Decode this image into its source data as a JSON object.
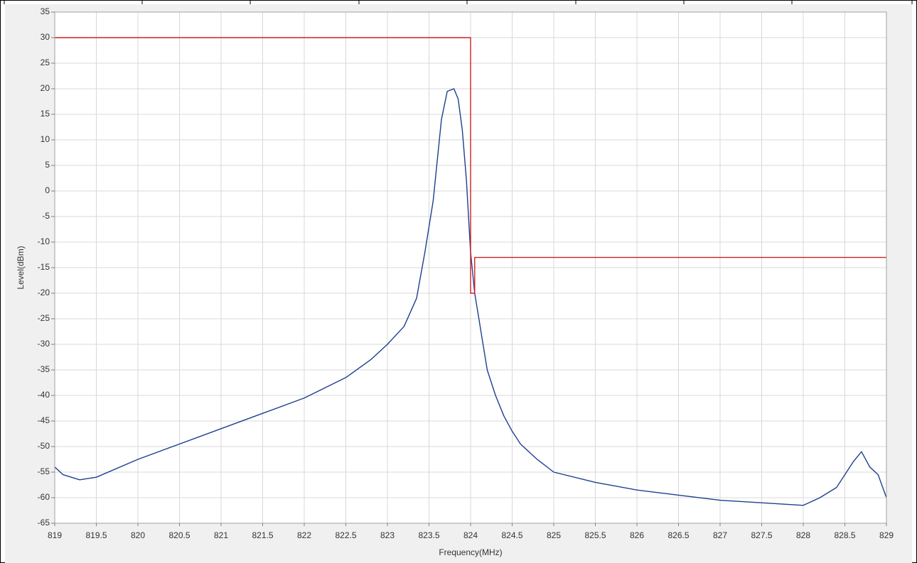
{
  "chart_data": {
    "type": "line",
    "title": "",
    "xlabel": "Frequency(MHz)",
    "ylabel": "Level(dBm)",
    "xlim": [
      819,
      829
    ],
    "ylim": [
      -65,
      35
    ],
    "x_ticks": [
      "819",
      "819.5",
      "820",
      "820.5",
      "821",
      "821.5",
      "822",
      "822.5",
      "823",
      "823.5",
      "824",
      "824.5",
      "825",
      "825.5",
      "826",
      "826.5",
      "827",
      "827.5",
      "828",
      "828.5",
      "829"
    ],
    "y_ticks": [
      "35",
      "30",
      "25",
      "20",
      "15",
      "10",
      "5",
      "0",
      "-5",
      "-10",
      "-15",
      "-20",
      "-25",
      "-30",
      "-35",
      "-40",
      "-45",
      "-50",
      "-55",
      "-60",
      "-65"
    ],
    "grid": true,
    "series": [
      {
        "color": "#1f3f8f",
        "x": [
          819.0,
          819.1,
          819.2,
          819.3,
          819.5,
          820.0,
          820.5,
          821.0,
          821.5,
          822.0,
          822.5,
          822.8,
          823.0,
          823.2,
          823.35,
          823.45,
          823.55,
          823.65,
          823.72,
          823.8,
          823.85,
          823.9,
          823.95,
          824.0,
          824.05,
          824.1,
          824.15,
          824.2,
          824.3,
          824.4,
          824.5,
          824.6,
          824.8,
          825.0,
          825.5,
          826.0,
          826.5,
          827.0,
          827.5,
          828.0,
          828.2,
          828.4,
          828.5,
          828.6,
          828.7,
          828.8,
          828.9,
          829.0
        ],
        "y": [
          -54,
          -55.5,
          -56,
          -56.5,
          -56,
          -52.5,
          -49.5,
          -46.5,
          -43.5,
          -40.5,
          -36.5,
          -33,
          -30,
          -26.5,
          -21,
          -12,
          -2,
          14,
          19.5,
          20,
          18,
          12,
          2,
          -12,
          -20,
          -25,
          -30,
          -35,
          -40,
          -44,
          -47,
          -49.5,
          -52.5,
          -55,
          -57,
          -58.5,
          -59.5,
          -60.5,
          -61,
          -61.5,
          -60,
          -58,
          -55.5,
          -53,
          -51,
          -54,
          -55.5,
          -60
        ]
      },
      {
        "color": "#d02020",
        "x": [
          819,
          824.0,
          824.0,
          824.05,
          824.05,
          829
        ],
        "y": [
          30,
          30,
          -20,
          -20,
          -13,
          -13
        ]
      }
    ]
  }
}
